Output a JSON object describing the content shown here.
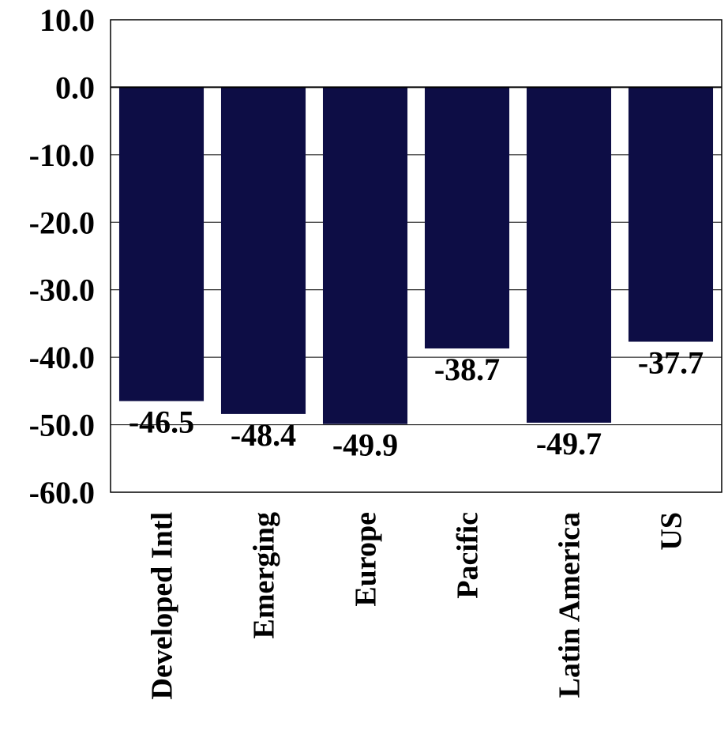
{
  "chart_data": {
    "type": "bar",
    "categories": [
      "Developed Intl",
      "Emerging",
      "Europe",
      "Pacific",
      "Latin America",
      "US"
    ],
    "values": [
      -46.5,
      -48.4,
      -49.9,
      -38.7,
      -49.7,
      -37.7
    ],
    "data_labels": [
      "-46.5",
      "-48.4",
      "-49.9",
      "-38.7",
      "-49.7",
      "-37.7"
    ],
    "ylim": [
      -60,
      10
    ],
    "y_ticks": [
      10,
      0,
      -10,
      -20,
      -30,
      -40,
      -50,
      -60
    ],
    "y_tick_labels": [
      "10.0",
      "0.0",
      "-10.0",
      "-20.0",
      "-30.0",
      "-40.0",
      "-50.0",
      "-60.0"
    ],
    "grid": true,
    "legend": "none",
    "title": "",
    "xlabel": "",
    "ylabel": "",
    "colors": {
      "bar": "#0d0d45",
      "grid": "#000000",
      "frame": "#000000"
    }
  }
}
